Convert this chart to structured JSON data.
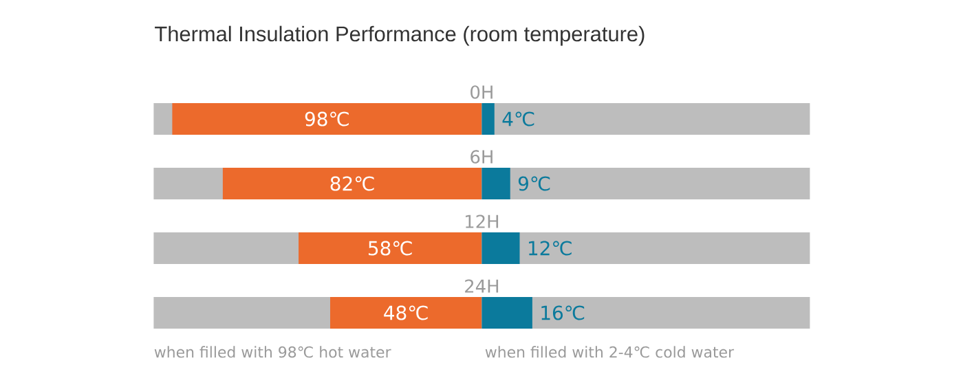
{
  "chart_data": [
    {
      "type": "bar",
      "orientation": "horizontal",
      "title": "Thermal Insulation Performance (room temperature)",
      "categories": [
        "0H",
        "6H",
        "12H",
        "24H"
      ],
      "series": [
        {
          "color": "#ec6a2c",
          "values": [
            98,
            82,
            58,
            48
          ],
          "value_labels": [
            "98℃",
            "82℃",
            "58℃",
            "48℃"
          ]
        }
      ],
      "annotations": [
        "when filled with 98℃ hot water"
      ]
    },
    {
      "type": "bar",
      "orientation": "horizontal",
      "series": [
        {
          "color": "#0b7a9c",
          "values": [
            4,
            9,
            12,
            16
          ],
          "value_labels": [
            "4℃",
            "9℃",
            "12℃",
            "16℃"
          ]
        }
      ],
      "annotations": [
        "when filled with 2-4℃ cold water"
      ]
    }
  ]
}
